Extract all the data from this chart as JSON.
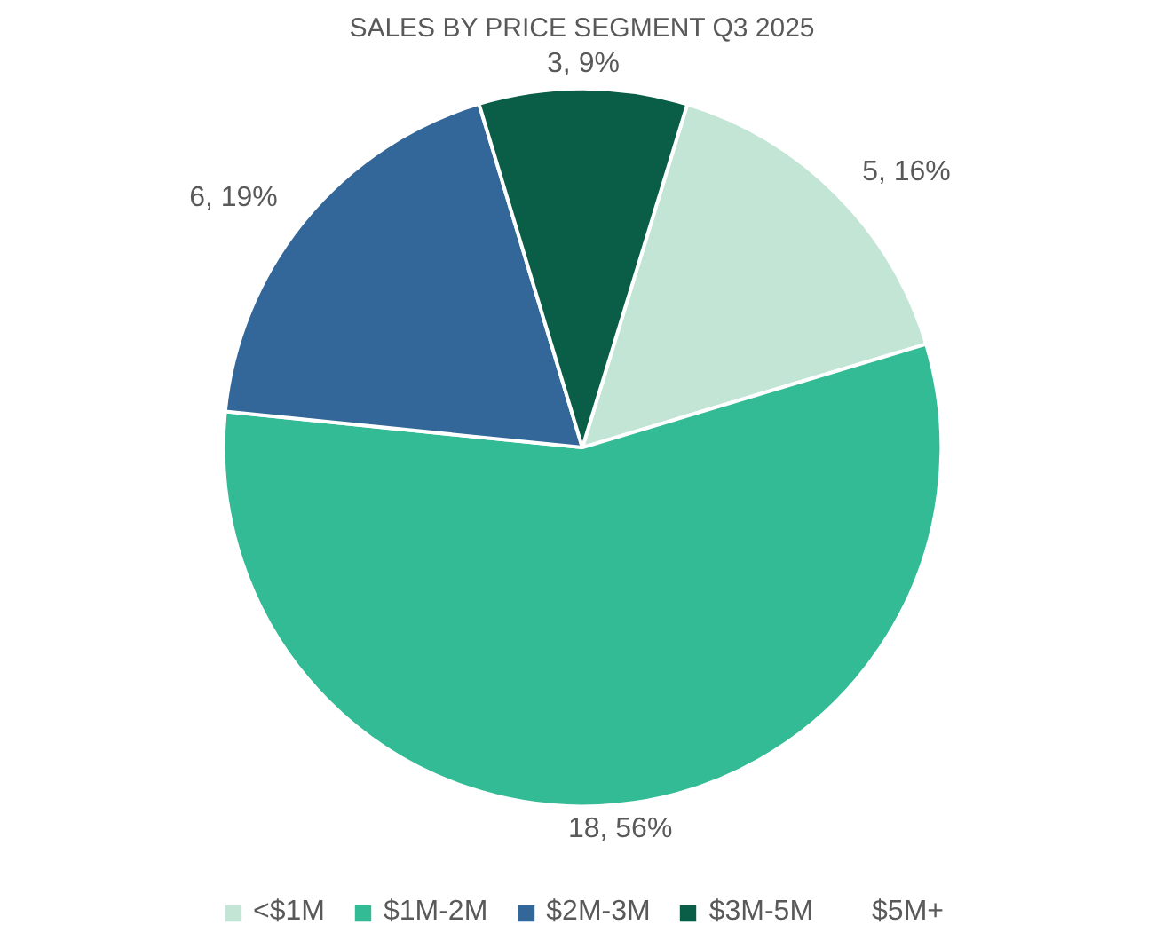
{
  "chart_data": {
    "type": "pie",
    "title": "SALES BY PRICE SEGMENT Q3 2025",
    "categories": [
      "<$1M",
      "$1M-2M",
      "$2M-3M",
      "$3M-5M",
      "$5M+"
    ],
    "values": [
      5,
      18,
      6,
      3,
      0
    ],
    "colors": [
      "#c3e5d5",
      "#33bb96",
      "#336699",
      "#0a5e47",
      "#ffffff"
    ],
    "value_labels": [
      "5, 16%",
      "18, 56%",
      "6, 19%",
      "3, 9%",
      null
    ],
    "legend": "bottom"
  }
}
